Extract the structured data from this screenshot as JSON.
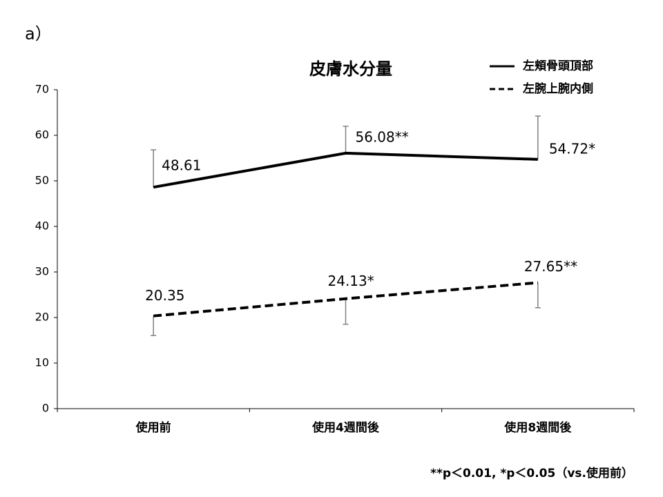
{
  "chart_data": {
    "type": "line",
    "panel_label": "a）",
    "title": "皮膚水分量",
    "categories": [
      "使用前",
      "使用4週間後",
      "使用8週間後"
    ],
    "series": [
      {
        "name": "左頬骨頭頂部",
        "color": "#000000",
        "line_style": "solid",
        "error_side": "plus",
        "values": [
          48.61,
          56.08,
          54.72
        ],
        "value_labels": [
          "48.61",
          "56.08**",
          "54.72*"
        ],
        "errors": [
          8.2,
          5.9,
          9.5
        ]
      },
      {
        "name": "左腕上腕内側",
        "color": "#000000",
        "line_style": "dashed",
        "error_side": "minus",
        "values": [
          20.35,
          24.13,
          27.65
        ],
        "value_labels": [
          "20.35",
          "24.13*",
          "27.65**"
        ],
        "errors": [
          4.3,
          5.6,
          5.5
        ]
      }
    ],
    "ylim": [
      0,
      70
    ],
    "yticks": [
      0,
      10,
      20,
      30,
      40,
      50,
      60,
      70
    ],
    "error_color": "#808080",
    "footnote": "**p＜0.01, *p＜0.05（vs.使用前）"
  }
}
